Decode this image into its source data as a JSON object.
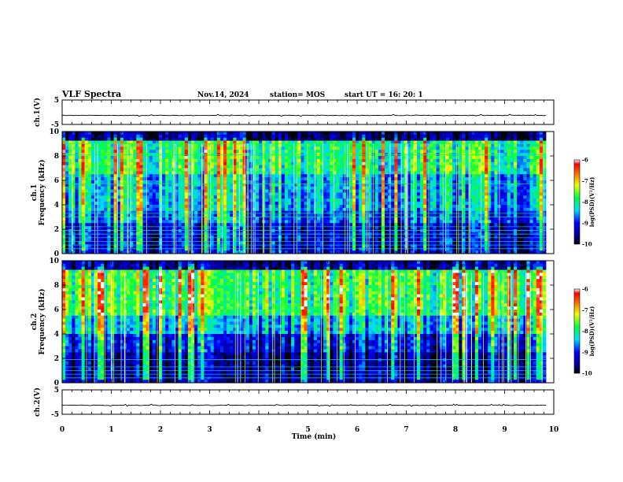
{
  "header": {
    "title": "VLF Spectra",
    "date": "Nov.14, 2024",
    "station": "station= MOS",
    "start": "start  UT  =   16: 20: 1"
  },
  "chart_data": [
    {
      "type": "line",
      "name": "ch1-voltage",
      "ylabel": "ch.1(V)",
      "ylim": [
        -5,
        5
      ],
      "yticks": [
        "5",
        "-5"
      ],
      "level": -1.3,
      "xlim": [
        0,
        10
      ]
    },
    {
      "type": "heatmap",
      "name": "ch1-spectrogram",
      "ylabel_top": "ch.1",
      "ylabel": "Frequency (kHz)",
      "ylim": [
        0,
        10
      ],
      "yticks": [
        "0",
        "2",
        "4",
        "6",
        "8",
        "10"
      ],
      "xlim": [
        0,
        9.84
      ],
      "colorbar": {
        "label": "log(PSD)(V²/Hz)",
        "range": [
          -10,
          -6
        ],
        "ticks": [
          "-6",
          "-7",
          "-8",
          "-9",
          "-10"
        ]
      },
      "strong_bands_khz": [
        0.4,
        0.7,
        1.0,
        1.3,
        1.6,
        1.9,
        2.2,
        3.0,
        3.3,
        5.7,
        8.1,
        9.0
      ]
    },
    {
      "type": "heatmap",
      "name": "ch2-spectrogram",
      "ylabel_top": "ch.2",
      "ylabel": "Frequency (kHz)",
      "ylim": [
        0,
        10
      ],
      "yticks": [
        "0",
        "2",
        "4",
        "6",
        "8",
        "10"
      ],
      "xlim": [
        0,
        9.84
      ],
      "colorbar": {
        "label": "log(PSD)(V²/Hz)",
        "range": [
          -10,
          -6
        ],
        "ticks": [
          "-6",
          "-7",
          "-8",
          "-9",
          "-10"
        ]
      },
      "strong_bands_khz": [
        0.4,
        0.7,
        1.0,
        1.3,
        1.9
      ]
    },
    {
      "type": "line",
      "name": "ch2-voltage",
      "ylabel": "ch.2(V)",
      "ylim": [
        -5,
        5
      ],
      "yticks": [
        "5",
        "-5"
      ],
      "level": -1.3,
      "xlim": [
        0,
        10
      ]
    }
  ],
  "x_axis": {
    "label": "Time  (min)",
    "ticks": [
      "0",
      "1",
      "2",
      "3",
      "4",
      "5",
      "6",
      "7",
      "8",
      "9",
      "10"
    ],
    "range": [
      0,
      10
    ]
  }
}
